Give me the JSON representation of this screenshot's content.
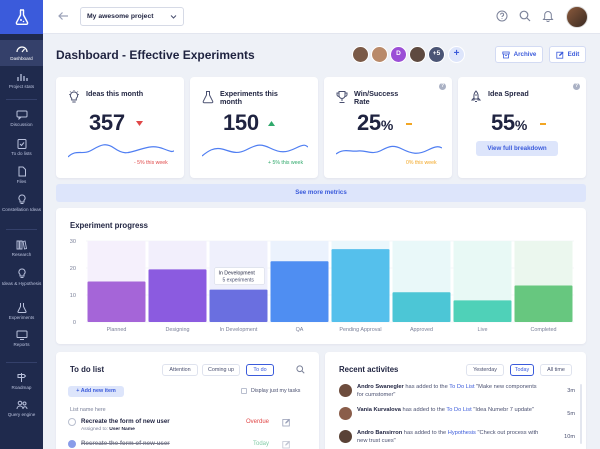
{
  "sidebar": {
    "logo": "flask-logo",
    "items": [
      {
        "label": "Dashboard",
        "icon": "gauge-icon",
        "active": true
      },
      {
        "label": "Project stats",
        "icon": "bar-chart-icon"
      },
      {
        "label": "Discussion",
        "icon": "chat-icon"
      },
      {
        "label": "To do lists",
        "icon": "clipboard-icon"
      },
      {
        "label": "Files",
        "icon": "file-icon"
      },
      {
        "label": "Constellation Ideas",
        "icon": "lightbulb-icon"
      },
      {
        "label": "Research",
        "icon": "books-icon"
      },
      {
        "label": "Ideas & Hypothesis",
        "icon": "idea-icon"
      },
      {
        "label": "Experiments",
        "icon": "flask-icon"
      },
      {
        "label": "Reports",
        "icon": "monitor-icon"
      },
      {
        "label": "Roadmap",
        "icon": "signpost-icon"
      },
      {
        "label": "Query engine",
        "icon": "users-icon"
      }
    ]
  },
  "topbar": {
    "project": "My awesome project"
  },
  "header": {
    "title": "Dashboard - Effective Experiments",
    "avatars": [
      {
        "initial": "",
        "color": "#7a5a48"
      },
      {
        "initial": "",
        "color": "#b98a6a"
      },
      {
        "initial": "D",
        "color": "#9b4fd6"
      },
      {
        "initial": "",
        "color": "#5e4a40"
      },
      {
        "initial": "+5",
        "color": "#4b5575"
      }
    ],
    "archive_label": "Archive",
    "edit_label": "Edit"
  },
  "metrics": [
    {
      "title": "Ideas this month",
      "value": "357",
      "unit": "",
      "trend": "down",
      "delta": "- 5% this week",
      "color": "#e04848"
    },
    {
      "title": "Experiments this month",
      "value": "150",
      "unit": "",
      "trend": "up",
      "delta": "+ 5% this week",
      "color": "#2fa96b"
    },
    {
      "title": "Win/Success Rate",
      "value": "25",
      "unit": "%",
      "trend": "flat",
      "delta": "0% this week",
      "color": "#f2a623"
    },
    {
      "title": "Idea Spread",
      "value": "55",
      "unit": "%",
      "trend": "flat",
      "delta": "",
      "color": "#f2a623",
      "button": "View full breakdown"
    }
  ],
  "see_more": "See more metrics",
  "chart": {
    "title": "Experiment progress"
  },
  "chart_data": {
    "type": "bar",
    "categories": [
      "Planned",
      "Designing",
      "In Development",
      "QA",
      "Pending Approval",
      "Approved",
      "Live",
      "Completed"
    ],
    "values": [
      15,
      19.5,
      12,
      22.5,
      27,
      11,
      8,
      13.5
    ],
    "background_values": [
      30,
      30,
      30,
      30,
      30,
      30,
      30,
      30
    ],
    "colors": [
      "#a565d8",
      "#8b5be0",
      "#6a6fe0",
      "#4f8ef2",
      "#55c0ec",
      "#4cc6d6",
      "#4fd1b8",
      "#67c77f"
    ],
    "bg_colors": [
      "#f5f0fc",
      "#f2effc",
      "#eff0fc",
      "#ebf2fd",
      "#ebf7fc",
      "#e9f8f9",
      "#e8f9f5",
      "#ebf7ee"
    ],
    "yticks": [
      0,
      10,
      20,
      30
    ],
    "ylim": [
      0,
      30
    ],
    "tooltip": {
      "category": "In Development",
      "text": "5 experiments"
    },
    "grid": true
  },
  "todo": {
    "title": "To do list",
    "tabs": [
      "Attention",
      "Coming up",
      "To do"
    ],
    "active_tab": 2,
    "add_label": "+ Add new item",
    "display_my_tasks": "Display just my tasks",
    "list_name": "List name here",
    "items": [
      {
        "text": "Recreate the form of new user",
        "assigned_label": "Assigned to:",
        "user": "User Name",
        "status": "Overdue",
        "status_color": "#e04848",
        "done": false
      },
      {
        "text": "Recreate the form of new user",
        "assigned_label": "",
        "user": "",
        "status": "Today",
        "status_color": "#2fa96b",
        "done": true
      }
    ]
  },
  "activities": {
    "title": "Recent activites",
    "tabs": [
      "Yesterday",
      "Today",
      "All time"
    ],
    "active_tab": 1,
    "items": [
      {
        "user": "Andro Swanegler",
        "pre": "has added to the",
        "link": "To Do List",
        "post": "\"Make new components for cumstomer\"",
        "time": "3m",
        "color": "#6d4c3d"
      },
      {
        "user": "Vania Kurvalova",
        "pre": "has added to the",
        "link": "To Do List",
        "post": "\"Idea Numebr 7 update\"",
        "time": "5m",
        "color": "#8a5d4a"
      },
      {
        "user": "Andro Bansirron",
        "pre": "has added to the",
        "link": "Hypothesis",
        "post": "\"Check out process with new trust cues\"",
        "time": "10m",
        "color": "#5a4236"
      }
    ]
  }
}
